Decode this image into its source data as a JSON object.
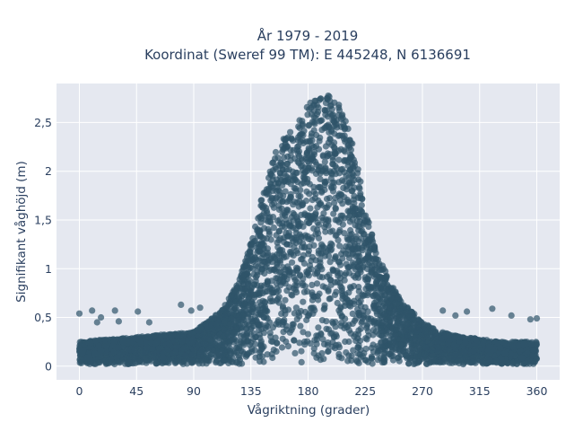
{
  "chart_data": {
    "type": "scatter",
    "title": [
      "År 1979 - 2019",
      "Koordinat (Sweref 99 TM): E 445248, N 6136691"
    ],
    "xlabel": "Vågriktning (grader)",
    "ylabel": "Signifikant våghöjd (m)",
    "xlim": [
      -18,
      378
    ],
    "ylim": [
      -0.14,
      2.9
    ],
    "x_ticks": [
      0,
      45,
      90,
      135,
      180,
      225,
      270,
      315,
      360
    ],
    "x_tick_labels": [
      "0",
      "45",
      "90",
      "135",
      "180",
      "225",
      "270",
      "315",
      "360"
    ],
    "y_ticks": [
      0,
      0.5,
      1,
      1.5,
      2,
      2.5
    ],
    "y_tick_labels": [
      "0",
      "0,5",
      "1",
      "1,5",
      "2",
      "2,5"
    ],
    "grid": true,
    "marker_color": "#2f5469",
    "background_color": "#e5e8f0",
    "envelope": {
      "direction": [
        0,
        45,
        90,
        110,
        125,
        135,
        145,
        155,
        165,
        175,
        180,
        190,
        200,
        210,
        220,
        225,
        235,
        245,
        255,
        270,
        285,
        300,
        315,
        330,
        345,
        360
      ],
      "max_height": [
        0.25,
        0.3,
        0.35,
        0.55,
        0.85,
        1.3,
        1.8,
        2.25,
        2.4,
        2.55,
        2.7,
        2.75,
        2.8,
        2.55,
        2.0,
        1.6,
        1.15,
        0.85,
        0.65,
        0.45,
        0.35,
        0.3,
        0.28,
        0.25,
        0.25,
        0.25
      ]
    },
    "outliers": [
      {
        "x": 0,
        "y": 0.54
      },
      {
        "x": 10,
        "y": 0.57
      },
      {
        "x": 14,
        "y": 0.45
      },
      {
        "x": 17,
        "y": 0.5
      },
      {
        "x": 28,
        "y": 0.57
      },
      {
        "x": 31,
        "y": 0.46
      },
      {
        "x": 46,
        "y": 0.56
      },
      {
        "x": 55,
        "y": 0.45
      },
      {
        "x": 80,
        "y": 0.63
      },
      {
        "x": 88,
        "y": 0.57
      },
      {
        "x": 95,
        "y": 0.6
      },
      {
        "x": 286,
        "y": 0.57
      },
      {
        "x": 296,
        "y": 0.52
      },
      {
        "x": 305,
        "y": 0.56
      },
      {
        "x": 325,
        "y": 0.59
      },
      {
        "x": 340,
        "y": 0.52
      },
      {
        "x": 355,
        "y": 0.48
      },
      {
        "x": 360,
        "y": 0.49
      }
    ]
  }
}
